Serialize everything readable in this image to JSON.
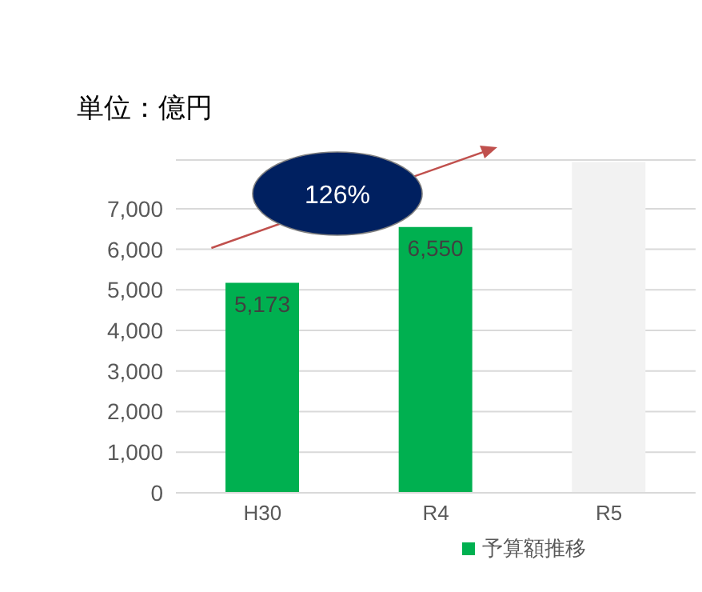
{
  "chart_data": {
    "type": "bar",
    "title": "単位：億円",
    "categories": [
      "H30",
      "R4",
      "R5"
    ],
    "series": [
      {
        "name": "予算額推移",
        "color": "#00b050",
        "colors": [
          "#00b050",
          "#00b050",
          "#f2f2f2"
        ],
        "values": [
          5173,
          6550,
          8150
        ],
        "value_labels": [
          "5,173",
          "6,550",
          null
        ]
      }
    ],
    "ylim": [
      0,
      8200
    ],
    "yticks": [
      0,
      {
        "value": 1000,
        "label": "1,000"
      },
      {
        "value": 2000,
        "label": "2,000"
      },
      {
        "value": 3000,
        "label": "3,000"
      },
      {
        "value": 4000,
        "label": "4,000"
      },
      {
        "value": 5000,
        "label": "5,000"
      },
      {
        "value": 6000,
        "label": "6,000"
      },
      {
        "value": 7000,
        "label": "7,000"
      }
    ],
    "grid": "y",
    "legend": "bottom",
    "annotations": [
      "126%"
    ]
  }
}
